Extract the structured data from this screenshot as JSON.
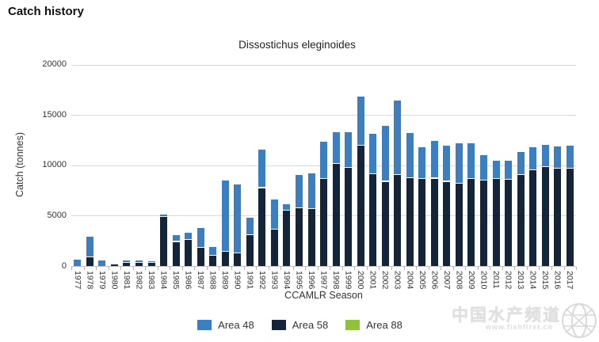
{
  "page": {
    "title": "Catch history"
  },
  "watermark": {
    "line1": "中国水产频道",
    "line2": "www.fishfirst.cn"
  },
  "chart_data": {
    "type": "bar",
    "stacked": true,
    "title": "Dissostichus eleginoides",
    "xlabel": "CCAMLR Season",
    "ylabel": "Catch (tonnes)",
    "ylim": [
      0,
      20000
    ],
    "yticks": [
      0,
      5000,
      10000,
      15000,
      20000
    ],
    "grid": true,
    "legend_position": "bottom",
    "categories": [
      "1977",
      "1978",
      "1979",
      "1980",
      "1981",
      "1982",
      "1983",
      "1984",
      "1985",
      "1986",
      "1987",
      "1988",
      "1989",
      "1990",
      "1991",
      "1992",
      "1993",
      "1994",
      "1995",
      "1996",
      "1997",
      "1998",
      "1999",
      "2000",
      "2001",
      "2002",
      "2003",
      "2004",
      "2005",
      "2006",
      "2007",
      "2008",
      "2009",
      "2010",
      "2011",
      "2012",
      "2013",
      "2014",
      "2015",
      "2016",
      "2017"
    ],
    "series": [
      {
        "name": "Area 48",
        "color": "#3c7fc0",
        "values": [
          650,
          2050,
          550,
          0,
          200,
          210,
          180,
          260,
          630,
          710,
          1960,
          860,
          7100,
          6850,
          1700,
          3840,
          3000,
          700,
          3280,
          3570,
          3700,
          3170,
          3550,
          4870,
          4010,
          5570,
          7430,
          4480,
          3160,
          3710,
          3580,
          3990,
          3550,
          2540,
          1810,
          1890,
          2230,
          2260,
          2200,
          2200,
          2250
        ]
      },
      {
        "name": "Area 58",
        "color": "#142439",
        "values": [
          0,
          850,
          0,
          180,
          350,
          310,
          290,
          4850,
          2400,
          2620,
          1830,
          1040,
          1400,
          1260,
          3080,
          7740,
          3630,
          5470,
          5730,
          5650,
          8630,
          10130,
          9740,
          11920,
          9150,
          8370,
          9020,
          8760,
          8630,
          8680,
          8370,
          8190,
          8630,
          8500,
          8630,
          8550,
          9070,
          9540,
          9800,
          9670,
          9670
        ]
      },
      {
        "name": "Area 88",
        "color": "#92c13f",
        "values": [
          0,
          0,
          0,
          0,
          0,
          0,
          0,
          0,
          0,
          0,
          0,
          0,
          0,
          0,
          0,
          0,
          0,
          0,
          0,
          0,
          0,
          0,
          0,
          0,
          0,
          0,
          0,
          0,
          0,
          0,
          0,
          0,
          0,
          0,
          0,
          0,
          0,
          0,
          0,
          0,
          0
        ]
      }
    ],
    "stack_order_bottom_to_top": [
      "Area 58",
      "Area 48",
      "Area 88"
    ]
  }
}
